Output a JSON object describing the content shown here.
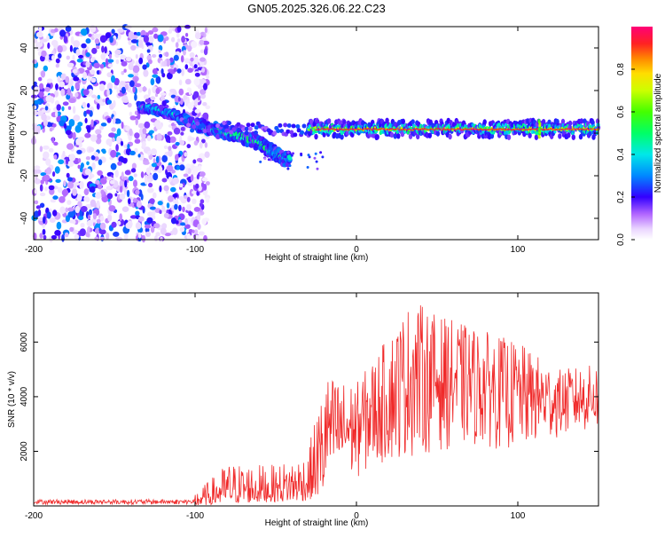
{
  "title": "GN05.2025.326.06.22.C23",
  "chart_data": [
    {
      "type": "heatmap",
      "xlabel": "Height of straight line (km)",
      "ylabel": "Frequency (Hz)",
      "xlim": [
        -200,
        150
      ],
      "ylim": [
        -50,
        50
      ],
      "x_ticks": [
        -200,
        -100,
        0,
        100
      ],
      "y_ticks": [
        -40,
        -20,
        0,
        20,
        40
      ],
      "colorbar": {
        "label": "Normalized spectral amplitude",
        "range": [
          0,
          1
        ],
        "ticks": [
          0.0,
          0.2,
          0.4,
          0.6,
          0.8
        ]
      },
      "features": [
        {
          "name": "broadband noise",
          "x_range": [
            -200,
            -95
          ],
          "freq_range": [
            -50,
            50
          ],
          "amplitude": 0.15
        },
        {
          "name": "descending track",
          "points": [
            [
              -130,
              12
            ],
            [
              -115,
              9
            ],
            [
              -100,
              4
            ],
            [
              -85,
              1
            ],
            [
              -70,
              -2
            ],
            [
              -60,
              -5
            ],
            [
              -50,
              -10
            ],
            [
              -45,
              -12
            ]
          ],
          "amplitude": 0.45
        },
        {
          "name": "main carrier",
          "x_range": [
            -30,
            150
          ],
          "freq_center": 2,
          "amplitude": 0.95
        },
        {
          "name": "spike",
          "x": 113,
          "freq_range": [
            -2,
            6
          ],
          "amplitude": 0.7
        }
      ]
    },
    {
      "type": "line",
      "xlabel": "Height of straight line (km)",
      "ylabel": "SNR (10 * v/v)",
      "xlim": [
        -200,
        150
      ],
      "ylim": [
        0,
        7800
      ],
      "x_ticks": [
        -200,
        -100,
        0,
        100
      ],
      "y_ticks": [
        2000,
        4000,
        6000
      ],
      "color": "#f02a2a",
      "envelope": [
        {
          "x": -200,
          "low": 0,
          "high": 250
        },
        {
          "x": -120,
          "low": 0,
          "high": 300
        },
        {
          "x": -100,
          "low": 0,
          "high": 500
        },
        {
          "x": -90,
          "low": 50,
          "high": 1000
        },
        {
          "x": -80,
          "low": 100,
          "high": 1600
        },
        {
          "x": -50,
          "low": 150,
          "high": 1500
        },
        {
          "x": -30,
          "low": 200,
          "high": 2000
        },
        {
          "x": -20,
          "low": 500,
          "high": 4800
        },
        {
          "x": -10,
          "low": 800,
          "high": 4600
        },
        {
          "x": 0,
          "low": 1000,
          "high": 4500
        },
        {
          "x": 15,
          "low": 1500,
          "high": 5800
        },
        {
          "x": 35,
          "low": 1800,
          "high": 7600
        },
        {
          "x": 50,
          "low": 2000,
          "high": 7000
        },
        {
          "x": 70,
          "low": 2200,
          "high": 6600
        },
        {
          "x": 100,
          "low": 2000,
          "high": 6000
        },
        {
          "x": 125,
          "low": 2500,
          "high": 5000
        },
        {
          "x": 150,
          "low": 2800,
          "high": 5200
        }
      ]
    }
  ]
}
